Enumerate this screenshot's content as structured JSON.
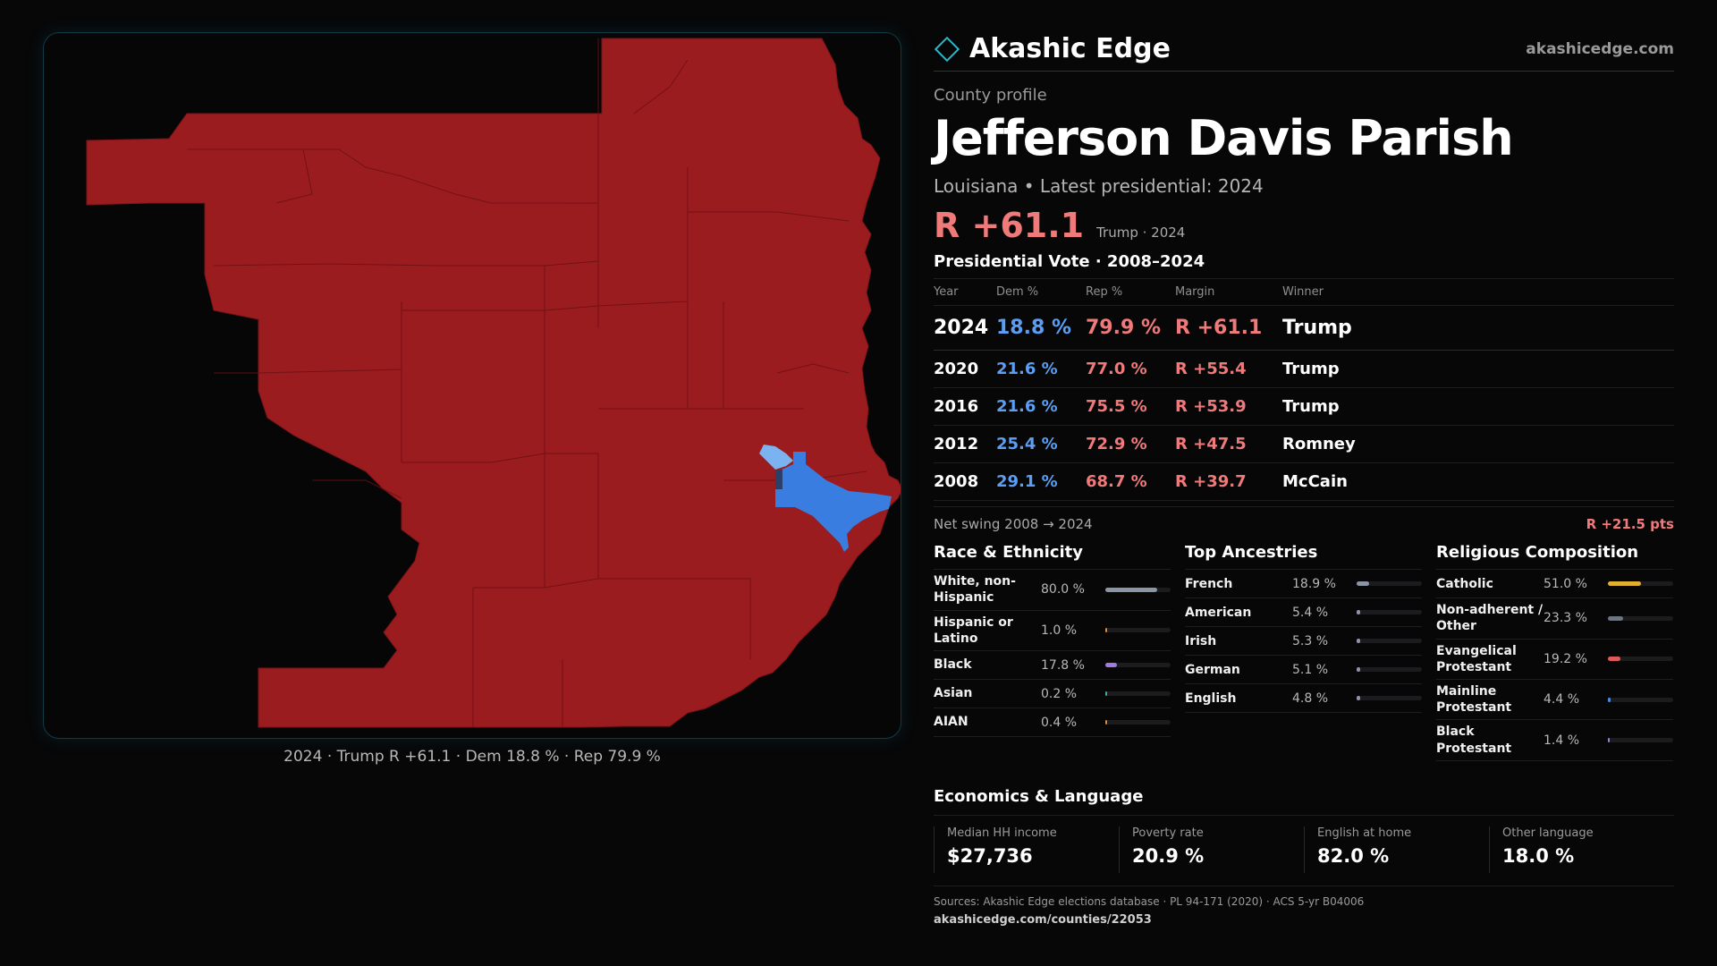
{
  "brand": {
    "name": "Akashic Edge",
    "url": "akashicedge.com"
  },
  "colors": {
    "rep": "#9b1c1f",
    "dem": "#3a7de0",
    "dem_light": "#7ab3f0",
    "accent": "#2bb8c8",
    "rep_text": "#f07a7a",
    "dem_text": "#5a9ff5"
  },
  "profile": {
    "eyebrow": "County profile",
    "title": "Jefferson Davis Parish",
    "subline": "Louisiana • Latest presidential: 2024",
    "margin": "R +61.1",
    "margin_note": "Trump · 2024"
  },
  "map": {
    "caption": "2024 · Trump R +61.1 · Dem 18.8 % · Rep 79.9 %"
  },
  "votes": {
    "title": "Presidential Vote · 2008–2024",
    "headers": {
      "year": "Year",
      "dem": "Dem %",
      "rep": "Rep %",
      "margin": "Margin",
      "winner": "Winner"
    },
    "rows": [
      {
        "year": "2024",
        "dem": "18.8 %",
        "rep": "79.9 %",
        "margin": "R +61.1",
        "winner": "Trump"
      },
      {
        "year": "2020",
        "dem": "21.6 %",
        "rep": "77.0 %",
        "margin": "R +55.4",
        "winner": "Trump"
      },
      {
        "year": "2016",
        "dem": "21.6 %",
        "rep": "75.5 %",
        "margin": "R +53.9",
        "winner": "Trump"
      },
      {
        "year": "2012",
        "dem": "25.4 %",
        "rep": "72.9 %",
        "margin": "R +47.5",
        "winner": "Romney"
      },
      {
        "year": "2008",
        "dem": "29.1 %",
        "rep": "68.7 %",
        "margin": "R +39.7",
        "winner": "McCain"
      }
    ],
    "swing_label": "Net swing 2008 → 2024",
    "swing_value": "R +21.5 pts"
  },
  "race": {
    "title": "Race & Ethnicity",
    "rows": [
      {
        "label": "White, non-Hispanic",
        "pct": "80.0 %",
        "value": 80.0,
        "color": "#8a95a6"
      },
      {
        "label": "Hispanic or Latino",
        "pct": "1.0 %",
        "value": 1.0,
        "color": "#d98a3a"
      },
      {
        "label": "Black",
        "pct": "17.8 %",
        "value": 17.8,
        "color": "#a07ae0"
      },
      {
        "label": "Asian",
        "pct": "0.2 %",
        "value": 0.2,
        "color": "#3ab0a0"
      },
      {
        "label": "AIAN",
        "pct": "0.4 %",
        "value": 0.4,
        "color": "#d98a3a"
      }
    ]
  },
  "ancestry": {
    "title": "Top Ancestries",
    "rows": [
      {
        "label": "French",
        "pct": "18.9 %",
        "value": 18.9,
        "color": "#8a95a6"
      },
      {
        "label": "American",
        "pct": "5.4 %",
        "value": 5.4,
        "color": "#8a95a6"
      },
      {
        "label": "Irish",
        "pct": "5.3 %",
        "value": 5.3,
        "color": "#8a95a6"
      },
      {
        "label": "German",
        "pct": "5.1 %",
        "value": 5.1,
        "color": "#8a95a6"
      },
      {
        "label": "English",
        "pct": "4.8 %",
        "value": 4.8,
        "color": "#8a95a6"
      }
    ]
  },
  "religion": {
    "title": "Religious Composition",
    "rows": [
      {
        "label": "Catholic",
        "pct": "51.0 %",
        "value": 51.0,
        "color": "#e0b030"
      },
      {
        "label": "Non-adherent / Other",
        "pct": "23.3 %",
        "value": 23.3,
        "color": "#6a7585"
      },
      {
        "label": "Evangelical Protestant",
        "pct": "19.2 %",
        "value": 19.2,
        "color": "#e05858"
      },
      {
        "label": "Mainline Protestant",
        "pct": "4.4 %",
        "value": 4.4,
        "color": "#4a8ae0"
      },
      {
        "label": "Black Protestant",
        "pct": "1.4 %",
        "value": 1.4,
        "color": "#a07ae0"
      }
    ]
  },
  "economics": {
    "title": "Economics & Language",
    "cells": [
      {
        "label": "Median HH income",
        "value": "$27,736"
      },
      {
        "label": "Poverty rate",
        "value": "20.9 %"
      },
      {
        "label": "English at home",
        "value": "82.0 %"
      },
      {
        "label": "Other language",
        "value": "18.0 %"
      }
    ]
  },
  "footer": {
    "sources": "Sources: Akashic Edge elections database · PL 94-171 (2020) · ACS 5-yr B04006",
    "link": "akashicedge.com/counties/22053"
  }
}
